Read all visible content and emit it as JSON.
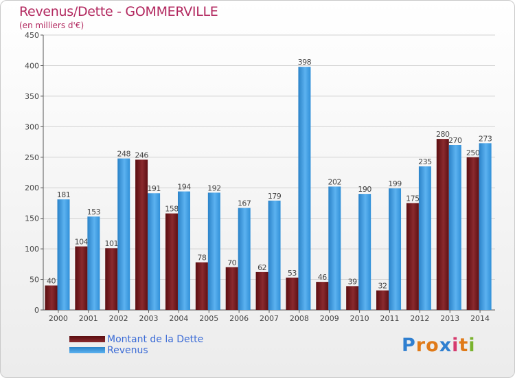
{
  "chart_data": {
    "type": "bar",
    "title": "Revenus/Dette - GOMMERVILLE",
    "subtitle": "(en milliers d'€)",
    "categories": [
      "2000",
      "2001",
      "2002",
      "2003",
      "2004",
      "2005",
      "2006",
      "2007",
      "2008",
      "2009",
      "2010",
      "2011",
      "2012",
      "2013",
      "2014"
    ],
    "series": [
      {
        "name": "Montant de la Dette",
        "color": "#7a1a1e",
        "values": [
          40,
          104,
          101,
          246,
          158,
          78,
          70,
          62,
          53,
          46,
          39,
          32,
          175,
          280,
          250
        ],
        "labels": [
          "40",
          "104",
          "101",
          "246",
          "158",
          "78",
          "70",
          "62",
          "53",
          "46",
          "39",
          "32",
          "175",
          "280",
          "250"
        ]
      },
      {
        "name": "Revenus",
        "color": "#3b9be0",
        "values": [
          181,
          153,
          248,
          191,
          194,
          192,
          167,
          179,
          398,
          202,
          190,
          199,
          235,
          270,
          273
        ],
        "labels": [
          "181",
          "153",
          "248",
          "191",
          "194",
          "192",
          "167",
          "179",
          "398",
          "202",
          "190",
          "199",
          "235",
          "270",
          "273"
        ]
      }
    ],
    "ylim": [
      0,
      450
    ],
    "yticks": [
      0,
      50,
      100,
      150,
      200,
      250,
      300,
      350,
      400,
      450
    ],
    "ytick_labels": [
      "0",
      "50",
      "100",
      "150",
      "200",
      "250",
      "300",
      "350",
      "400",
      "450"
    ],
    "xlabel": "",
    "ylabel": "",
    "grid": true,
    "legend_position": "bottom-left"
  },
  "logo": {
    "letters": [
      "P",
      "r",
      "o",
      "x",
      "i",
      "t",
      "i"
    ],
    "colors": [
      "#2f7fd0",
      "#e07a18",
      "#e07a18",
      "#2f7fd0",
      "#d63a6d",
      "#e07a18",
      "#7ab32e"
    ]
  }
}
